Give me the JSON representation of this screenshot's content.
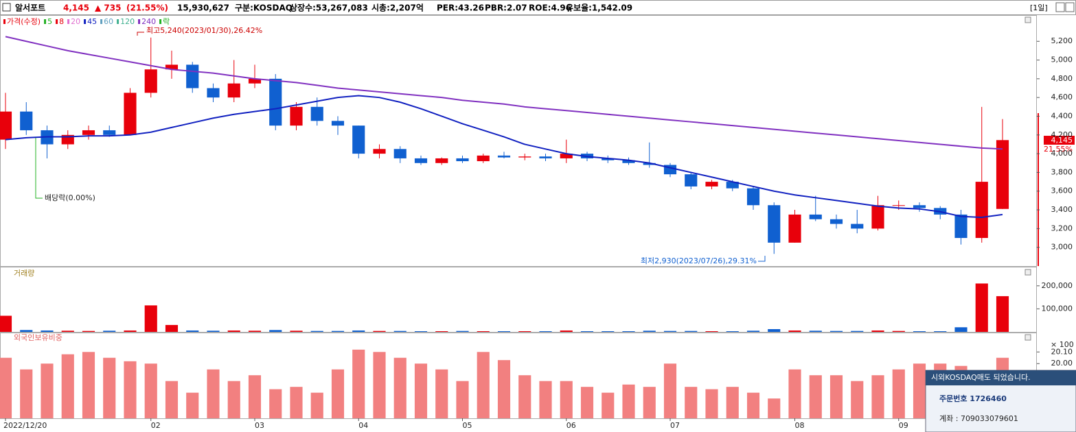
{
  "header": {
    "name": "알서포트",
    "price": "4,145",
    "change": "▲ 735",
    "rate": "(21.55%)",
    "volume": "15,930,627",
    "market": "구분:KOSDAQ",
    "listed": "상장수:53,267,083",
    "cap": "시총:2,207억",
    "per": "PER:43.26",
    "pbr": "PBR:2.07",
    "roe": "ROE:4.96",
    "reserve": "유보율:1,542.09",
    "period": "[1일]"
  },
  "popup": {
    "title": "시외KOSDAQ매도 되었습니다.",
    "order": "주문번호 1726460",
    "account": "계좌 : 709033079601"
  },
  "chart_data": [
    {
      "type": "candlestick",
      "up_color": "#e8000b",
      "down_color": "#1060d0",
      "categories": [
        "2022/12/20",
        null,
        null,
        null,
        null,
        null,
        null,
        "02",
        null,
        null,
        null,
        null,
        "03",
        null,
        null,
        null,
        null,
        "04",
        null,
        null,
        null,
        null,
        "05",
        null,
        null,
        null,
        null,
        "06",
        null,
        null,
        null,
        null,
        "07",
        null,
        null,
        null,
        null,
        null,
        "08",
        null,
        null,
        null,
        null,
        "09",
        null,
        null,
        null,
        null,
        null
      ],
      "open": [
        4150,
        4450,
        4250,
        4100,
        4200,
        4250,
        4200,
        4650,
        4900,
        4950,
        4700,
        4600,
        4750,
        4800,
        4300,
        4500,
        4350,
        4300,
        4000,
        4050,
        3950,
        3900,
        3950,
        3920,
        3980,
        3960,
        3970,
        3950,
        4000,
        3950,
        3930,
        3900,
        3880,
        3780,
        3650,
        3700,
        3630,
        3450,
        3050,
        3350,
        3300,
        3250,
        3200,
        3450,
        3450,
        3420,
        3350,
        3100,
        3410
      ],
      "high": [
        4650,
        4550,
        4300,
        4250,
        4300,
        4300,
        4700,
        5240,
        5100,
        4980,
        4750,
        5000,
        4950,
        4850,
        4550,
        4600,
        4400,
        4300,
        4100,
        4080,
        3980,
        3960,
        3980,
        4000,
        4020,
        4000,
        4000,
        4150,
        4020,
        3980,
        3960,
        4120,
        3900,
        3800,
        3720,
        3720,
        3650,
        3480,
        3400,
        3550,
        3350,
        3400,
        3550,
        3500,
        3480,
        3440,
        3400,
        4500,
        4370
      ],
      "low": [
        4050,
        4200,
        3950,
        4050,
        4150,
        4180,
        4200,
        4600,
        4800,
        4650,
        4550,
        4550,
        4700,
        4250,
        4250,
        4300,
        4200,
        3950,
        3950,
        3900,
        3880,
        3880,
        3900,
        3900,
        3950,
        3930,
        3920,
        3900,
        3920,
        3900,
        3880,
        3850,
        3750,
        3620,
        3620,
        3600,
        3400,
        2930,
        3050,
        3280,
        3200,
        3150,
        3180,
        3400,
        3380,
        3300,
        3030,
        3050,
        3410
      ],
      "close": [
        4450,
        4250,
        4100,
        4200,
        4250,
        4200,
        4650,
        4900,
        4950,
        4700,
        4600,
        4750,
        4800,
        4300,
        4500,
        4350,
        4300,
        4000,
        4050,
        3950,
        3900,
        3950,
        3920,
        3980,
        3960,
        3970,
        3950,
        4000,
        3950,
        3930,
        3900,
        3880,
        3780,
        3650,
        3700,
        3630,
        3450,
        3050,
        3350,
        3300,
        3250,
        3200,
        3450,
        3450,
        3420,
        3350,
        3100,
        3700,
        4145
      ],
      "legend": [
        {
          "name": "가격(수정)",
          "color": "#e8000b"
        },
        {
          "name": "5",
          "color": "#21b021"
        },
        {
          "name": "8",
          "color": "#e8000b"
        },
        {
          "name": "20",
          "color": "#e070d0"
        },
        {
          "name": "45",
          "color": "#1020c0",
          "values": [
            4150,
            4170,
            4180,
            4180,
            4190,
            4190,
            4200,
            4230,
            4280,
            4330,
            4380,
            4420,
            4450,
            4480,
            4520,
            4560,
            4600,
            4620,
            4600,
            4550,
            4480,
            4400,
            4320,
            4250,
            4180,
            4100,
            4050,
            4000,
            3970,
            3950,
            3930,
            3900,
            3850,
            3800,
            3750,
            3700,
            3650,
            3600,
            3560,
            3530,
            3500,
            3470,
            3440,
            3420,
            3410,
            3380,
            3330,
            3320,
            3350
          ]
        },
        {
          "name": "60",
          "color": "#60a0c0"
        },
        {
          "name": "120",
          "color": "#40b090"
        },
        {
          "name": "240",
          "color": "#8030c0",
          "values": [
            5250,
            5200,
            5150,
            5100,
            5060,
            5020,
            4980,
            4940,
            4900,
            4880,
            4860,
            4830,
            4800,
            4780,
            4760,
            4730,
            4700,
            4680,
            4660,
            4640,
            4620,
            4600,
            4570,
            4550,
            4530,
            4500,
            4480,
            4460,
            4440,
            4420,
            4400,
            4380,
            4360,
            4340,
            4320,
            4300,
            4280,
            4260,
            4240,
            4220,
            4200,
            4180,
            4160,
            4140,
            4120,
            4100,
            4080,
            4060,
            4050
          ]
        },
        {
          "name": "락",
          "color": "#21b021"
        }
      ],
      "annotations": {
        "high": "최고5,240(2023/01/30),26.42%",
        "low": "최저2,930(2023/07/26),29.31%",
        "dividend": "배당락(0.00%)"
      },
      "last_price": "4,145",
      "last_rate": "21.55%",
      "ylim": [
        2800,
        5480
      ],
      "yticks": [
        {
          "value": 3000,
          "label": "3,000"
        },
        {
          "value": 3200,
          "label": "3,200"
        },
        {
          "value": 3400,
          "label": "3,400"
        },
        {
          "value": 3600,
          "label": "3,600"
        },
        {
          "value": 3800,
          "label": "3,800"
        },
        {
          "value": 4000,
          "label": "4,000"
        },
        {
          "value": 4200,
          "label": "4,200"
        },
        {
          "value": 4400,
          "label": "4,400"
        },
        {
          "value": 4600,
          "label": "4,600"
        },
        {
          "value": 4800,
          "label": "4,800"
        },
        {
          "value": 5000,
          "label": "5,000"
        },
        {
          "value": 5200,
          "label": "5,200"
        }
      ]
    },
    {
      "type": "bar",
      "title": "거래량",
      "unit": "× 100",
      "values": [
        70000,
        8000,
        6000,
        5000,
        4000,
        5000,
        6000,
        115000,
        30000,
        6000,
        5000,
        6000,
        5000,
        8000,
        5000,
        4000,
        4000,
        6000,
        4000,
        4000,
        3000,
        3000,
        4000,
        3000,
        3000,
        3000,
        3000,
        6000,
        3000,
        3000,
        3000,
        5000,
        4000,
        4000,
        3000,
        3000,
        5000,
        12000,
        6000,
        5000,
        4000,
        4000,
        6000,
        4000,
        3000,
        3000,
        20000,
        210000,
        155000
      ],
      "ylim": [
        0,
        250000
      ],
      "yticks": [
        {
          "value": 100000,
          "label": "100,000"
        },
        {
          "value": 200000,
          "label": "200,000"
        }
      ]
    },
    {
      "type": "bar",
      "title": "외국인보유비중",
      "color": "#f28080",
      "values": [
        20.05,
        19.95,
        20.0,
        20.08,
        20.1,
        20.05,
        20.02,
        20.0,
        19.85,
        19.75,
        19.95,
        19.85,
        19.9,
        19.78,
        19.8,
        19.75,
        19.95,
        20.12,
        20.1,
        20.05,
        20.0,
        19.95,
        19.85,
        20.1,
        20.03,
        19.9,
        19.85,
        19.85,
        19.8,
        19.75,
        19.82,
        19.8,
        20.0,
        19.8,
        19.78,
        19.8,
        19.75,
        19.7,
        19.95,
        19.9,
        19.9,
        19.85,
        19.9,
        19.95,
        20.0,
        20.0,
        19.98,
        19.9,
        20.05
      ],
      "ylim": [
        19.53,
        20.19
      ],
      "yticks": [
        {
          "value": 20,
          "label": "20.00"
        },
        {
          "value": 20.1,
          "label": "20.10"
        }
      ]
    }
  ]
}
